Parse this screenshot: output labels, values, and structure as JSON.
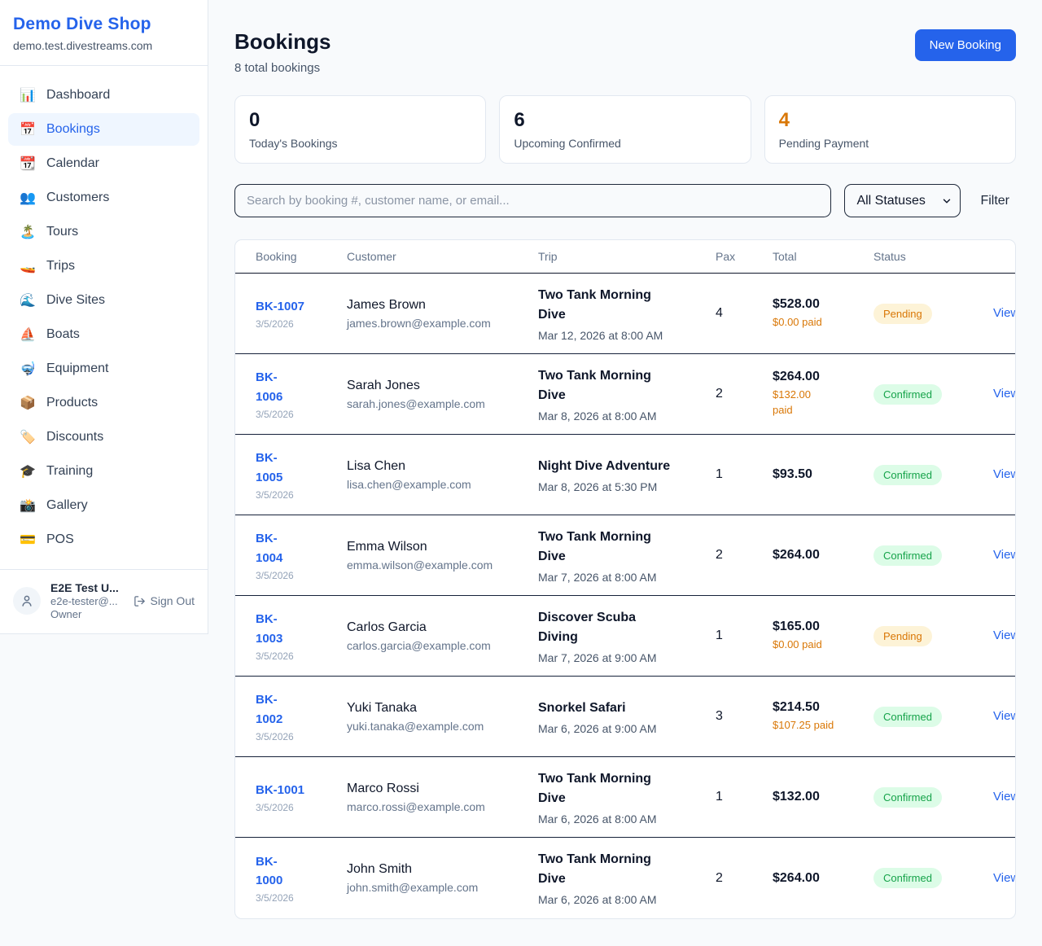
{
  "sidebar": {
    "brand": "Demo Dive Shop",
    "domain": "demo.test.divestreams.com",
    "items": [
      {
        "id": "dashboard",
        "icon": "📊",
        "label": "Dashboard",
        "active": false
      },
      {
        "id": "bookings",
        "icon": "📅",
        "label": "Bookings",
        "active": true
      },
      {
        "id": "calendar",
        "icon": "📆",
        "label": "Calendar",
        "active": false
      },
      {
        "id": "customers",
        "icon": "👥",
        "label": "Customers",
        "active": false
      },
      {
        "id": "tours",
        "icon": "🏝️",
        "label": "Tours",
        "active": false
      },
      {
        "id": "trips",
        "icon": "🚤",
        "label": "Trips",
        "active": false
      },
      {
        "id": "dive-sites",
        "icon": "🌊",
        "label": "Dive Sites",
        "active": false
      },
      {
        "id": "boats",
        "icon": "⛵",
        "label": "Boats",
        "active": false
      },
      {
        "id": "equipment",
        "icon": "🤿",
        "label": "Equipment",
        "active": false
      },
      {
        "id": "products",
        "icon": "📦",
        "label": "Products",
        "active": false
      },
      {
        "id": "discounts",
        "icon": "🏷️",
        "label": "Discounts",
        "active": false
      },
      {
        "id": "training",
        "icon": "🎓",
        "label": "Training",
        "active": false
      },
      {
        "id": "gallery",
        "icon": "📸",
        "label": "Gallery",
        "active": false
      },
      {
        "id": "pos",
        "icon": "💳",
        "label": "POS",
        "active": false
      }
    ],
    "user": {
      "name": "E2E Test U...",
      "email": "e2e-tester@...",
      "role": "Owner",
      "sign_out_label": "Sign Out"
    }
  },
  "header": {
    "title": "Bookings",
    "subtitle": "8 total bookings",
    "new_booking_label": "New Booking"
  },
  "stats": [
    {
      "value": "0",
      "label": "Today's Bookings",
      "accent": "dark"
    },
    {
      "value": "6",
      "label": "Upcoming Confirmed",
      "accent": "dark"
    },
    {
      "value": "4",
      "label": "Pending Payment",
      "accent": "orange"
    }
  ],
  "controls": {
    "search_placeholder": "Search by booking #, customer name, or email...",
    "status_selected": "All Statuses",
    "filter_label": "Filter"
  },
  "colors": {
    "accent_blue": "#2563eb",
    "pending_text": "#d97706",
    "pending_bg": "#fdf3d7",
    "confirmed_text": "#16a34a",
    "confirmed_bg": "#dcfce7"
  },
  "table": {
    "columns": [
      "Booking",
      "Customer",
      "Trip",
      "Pax",
      "Total",
      "Status"
    ],
    "view_label": "View",
    "rows": [
      {
        "booking": "BK-1007",
        "date": "3/5/2026",
        "customer": "James Brown",
        "email": "james.brown@example.com",
        "trip": "Two Tank Morning\nDive",
        "trip_datetime": "Mar 12, 2026 at 8:00 AM",
        "pax": "4",
        "total": "$528.00",
        "paid": "$0.00 paid",
        "status": "Pending"
      },
      {
        "booking": "BK-\n1006",
        "date": "3/5/2026",
        "customer": "Sarah Jones",
        "email": "sarah.jones@example.com",
        "trip": "Two Tank Morning\nDive",
        "trip_datetime": "Mar 8, 2026 at 8:00 AM",
        "pax": "2",
        "total": "$264.00",
        "paid": "$132.00\npaid",
        "status": "Confirmed"
      },
      {
        "booking": "BK-\n1005",
        "date": "3/5/2026",
        "customer": "Lisa Chen",
        "email": "lisa.chen@example.com",
        "trip": "Night Dive Adventure",
        "trip_datetime": "Mar 8, 2026 at 5:30 PM",
        "pax": "1",
        "total": "$93.50",
        "paid": "",
        "status": "Confirmed"
      },
      {
        "booking": "BK-\n1004",
        "date": "3/5/2026",
        "customer": "Emma Wilson",
        "email": "emma.wilson@example.com",
        "trip": "Two Tank Morning\nDive",
        "trip_datetime": "Mar 7, 2026 at 8:00 AM",
        "pax": "2",
        "total": "$264.00",
        "paid": "",
        "status": "Confirmed"
      },
      {
        "booking": "BK-\n1003",
        "date": "3/5/2026",
        "customer": "Carlos Garcia",
        "email": "carlos.garcia@example.com",
        "trip": "Discover Scuba\nDiving",
        "trip_datetime": "Mar 7, 2026 at 9:00 AM",
        "pax": "1",
        "total": "$165.00",
        "paid": "$0.00 paid",
        "status": "Pending"
      },
      {
        "booking": "BK-\n1002",
        "date": "3/5/2026",
        "customer": "Yuki Tanaka",
        "email": "yuki.tanaka@example.com",
        "trip": "Snorkel Safari",
        "trip_datetime": "Mar 6, 2026 at 9:00 AM",
        "pax": "3",
        "total": "$214.50",
        "paid": "$107.25 paid",
        "status": "Confirmed"
      },
      {
        "booking": "BK-1001",
        "date": "3/5/2026",
        "customer": "Marco Rossi",
        "email": "marco.rossi@example.com",
        "trip": "Two Tank Morning\nDive",
        "trip_datetime": "Mar 6, 2026 at 8:00 AM",
        "pax": "1",
        "total": "$132.00",
        "paid": "",
        "status": "Confirmed"
      },
      {
        "booking": "BK-\n1000",
        "date": "3/5/2026",
        "customer": "John Smith",
        "email": "john.smith@example.com",
        "trip": "Two Tank Morning\nDive",
        "trip_datetime": "Mar 6, 2026 at 8:00 AM",
        "pax": "2",
        "total": "$264.00",
        "paid": "",
        "status": "Confirmed"
      }
    ]
  }
}
